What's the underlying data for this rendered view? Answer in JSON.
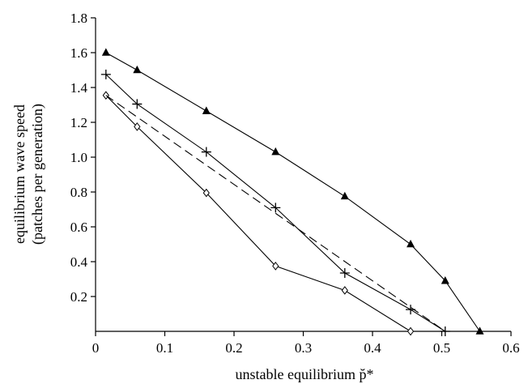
{
  "chart_data": {
    "type": "line",
    "title": "",
    "xlabel": "unstable equilibrium p̆*",
    "ylabel": "equilibrium wave speed",
    "ylabel2": "(patches per generation)",
    "xlim": [
      0,
      0.6
    ],
    "ylim": [
      0,
      1.8
    ],
    "xticks": [
      "0",
      "0.1",
      "0.2",
      "0.3",
      "0.4",
      "0.5",
      "0.6"
    ],
    "yticks": [
      "0.2",
      "0.4",
      "0.6",
      "0.8",
      "1.0",
      "1.2",
      "1.4",
      "1.6",
      "1.8"
    ],
    "grid": false,
    "series": [
      {
        "marker": "triangle",
        "style": "solid",
        "x": [
          0.015,
          0.06,
          0.16,
          0.26,
          0.36,
          0.455,
          0.505,
          0.555
        ],
        "y": [
          1.6,
          1.5,
          1.265,
          1.03,
          0.775,
          0.5,
          0.29,
          0.0
        ]
      },
      {
        "marker": "plus",
        "style": "solid",
        "x": [
          0.015,
          0.06,
          0.16,
          0.26,
          0.36,
          0.455,
          0.505
        ],
        "y": [
          1.475,
          1.305,
          1.03,
          0.71,
          0.335,
          0.125,
          0.0
        ]
      },
      {
        "marker": "diamond",
        "style": "solid",
        "x": [
          0.015,
          0.06,
          0.16,
          0.26,
          0.36,
          0.455
        ],
        "y": [
          1.355,
          1.175,
          0.795,
          0.375,
          0.235,
          0.0
        ]
      },
      {
        "marker": "none",
        "style": "dashed",
        "x": [
          0.015,
          0.505
        ],
        "y": [
          1.355,
          0.0
        ]
      }
    ]
  }
}
